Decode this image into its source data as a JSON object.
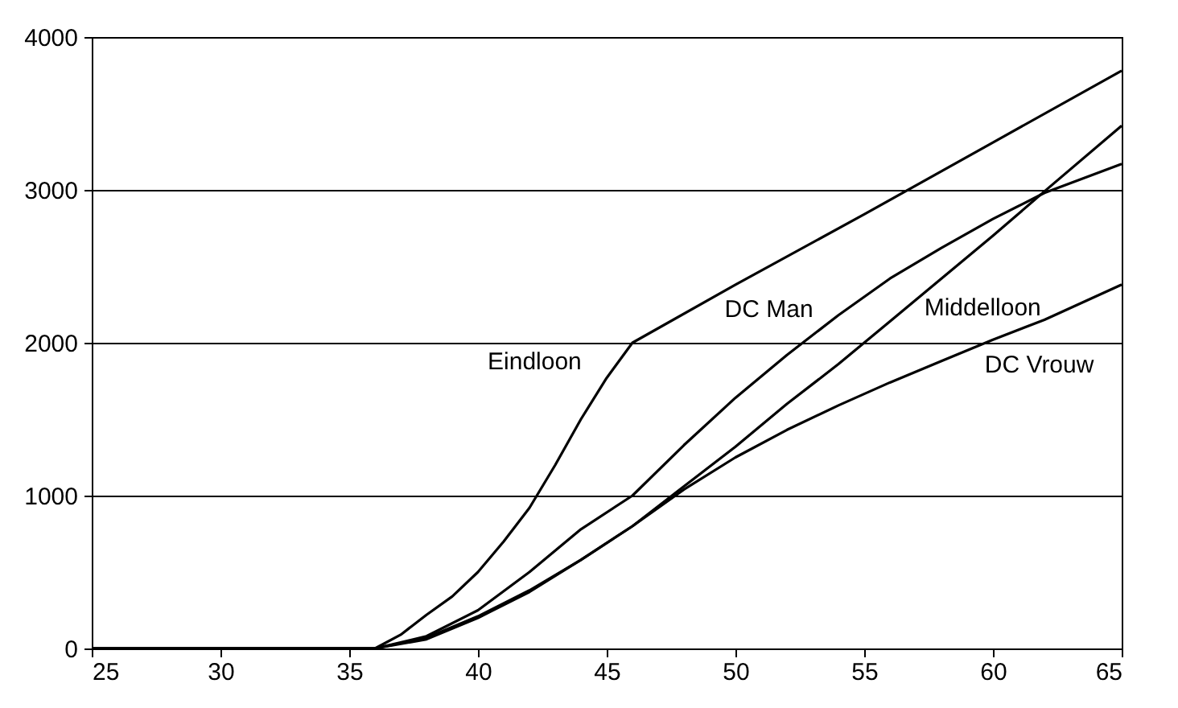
{
  "chart_data": {
    "type": "line",
    "xlim": [
      25,
      65
    ],
    "xticks": [
      25,
      30,
      35,
      40,
      45,
      50,
      55,
      60,
      65
    ],
    "ylim": [
      0,
      4000
    ],
    "yticks": [
      0,
      {
        "value": 1000,
        "label": "1000"
      },
      {
        "value": 2000,
        "label": "2000"
      },
      {
        "value": 3000,
        "label": "3000"
      },
      {
        "value": 4000,
        "label": "4000"
      }
    ],
    "grid": "y",
    "legend": false,
    "marker": "none",
    "line_style": "solid",
    "series": [
      {
        "name": "Eindloon",
        "color": "#000000",
        "x": [
          25,
          36,
          37,
          38,
          39,
          40,
          41,
          42,
          43,
          44,
          45,
          46,
          50,
          55,
          60,
          65
        ],
        "values": [
          0,
          0,
          90,
          220,
          340,
          500,
          700,
          920,
          1200,
          1500,
          1770,
          2000,
          2380,
          2840,
          3310,
          3780
        ]
      },
      {
        "name": "DC Man",
        "color": "#000000",
        "x": [
          25,
          36,
          38,
          40,
          42,
          44,
          46,
          48,
          50,
          52,
          54,
          56,
          58,
          60,
          62,
          65
        ],
        "values": [
          0,
          0,
          80,
          250,
          500,
          780,
          1000,
          1330,
          1640,
          1920,
          2180,
          2420,
          2620,
          2810,
          2980,
          3170
        ]
      },
      {
        "name": "Middelloon",
        "color": "#000000",
        "x": [
          25,
          36,
          38,
          40,
          42,
          44,
          46,
          48,
          50,
          52,
          54,
          56,
          58,
          60,
          62,
          65
        ],
        "values": [
          0,
          0,
          60,
          200,
          370,
          580,
          800,
          1060,
          1320,
          1600,
          1860,
          2140,
          2420,
          2700,
          2990,
          3420
        ]
      },
      {
        "name": "DC Vrouw",
        "color": "#000000",
        "x": [
          25,
          36,
          38,
          40,
          42,
          44,
          46,
          48,
          50,
          52,
          54,
          56,
          58,
          60,
          62,
          65
        ],
        "values": [
          0,
          0,
          70,
          210,
          380,
          580,
          800,
          1040,
          1250,
          1430,
          1590,
          1740,
          1880,
          2020,
          2150,
          2380
        ]
      }
    ]
  }
}
